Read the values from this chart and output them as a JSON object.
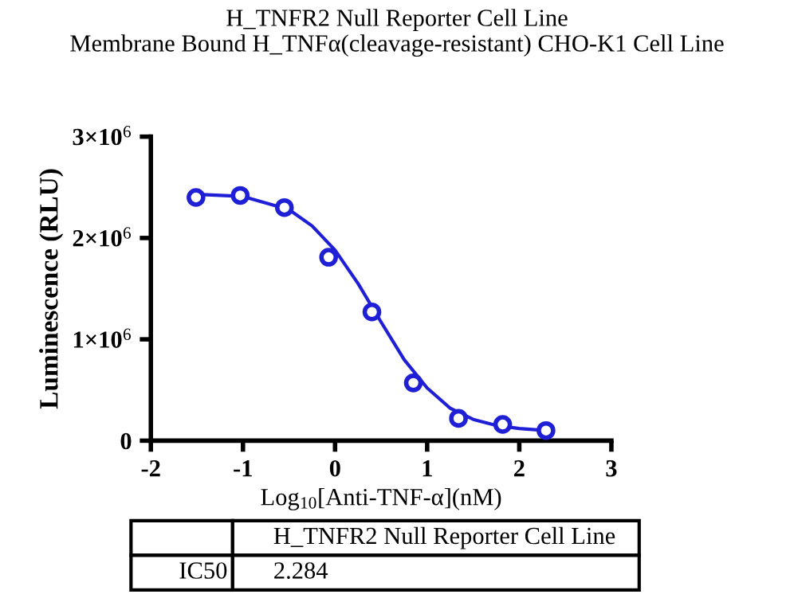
{
  "chart_data": {
    "type": "scatter",
    "title": "H_TNFR2 Null Reporter Cell Line\nMembrane Bound H_TNFα(cleavage-resistant) CHO-K1 Cell Line",
    "xlabel": "Log$_{10}$[Anti-TNF-α](nM)",
    "ylabel": "Luminescence (RLU)",
    "series": [
      {
        "color": "#1f1fd6",
        "marker": "circle",
        "x": [
          -1.51,
          -1.03,
          -0.55,
          -0.07,
          0.4,
          0.85,
          1.34,
          1.82,
          2.29
        ],
        "values": [
          2400000,
          2420000,
          2300000,
          1810000,
          1270000,
          570000,
          220000,
          160000,
          100000
        ]
      },
      {
        "type": "line",
        "color": "#1f1fd6",
        "line_style": "solid",
        "x": [
          -1.5,
          -1.0,
          -0.5,
          -0.25,
          0.0,
          0.25,
          0.5,
          0.75,
          1.0,
          1.25,
          1.5,
          1.75,
          2.0,
          2.3
        ],
        "values": [
          2430000,
          2410000,
          2280000,
          2120000,
          1880000,
          1550000,
          1170000,
          800000,
          520000,
          320000,
          210000,
          150000,
          120000,
          100000
        ]
      }
    ],
    "xlim": [
      -2,
      3
    ],
    "xticks": [
      -2,
      -1,
      0,
      1,
      2,
      3
    ],
    "ylim": [
      0,
      3000000
    ],
    "yticks": [
      {
        "value": 0,
        "label": "0"
      },
      {
        "value": 1000000,
        "label": "1×10$^{6}$"
      },
      {
        "value": 2000000,
        "label": "2×10$^{6}$"
      },
      {
        "value": 3000000,
        "label": "3×10$^{6}$"
      }
    ],
    "grid": false,
    "legend": false,
    "annotations": [
      "H_TNFR2 Null Reporter Cell Line",
      "IC50",
      "2.284"
    ]
  }
}
